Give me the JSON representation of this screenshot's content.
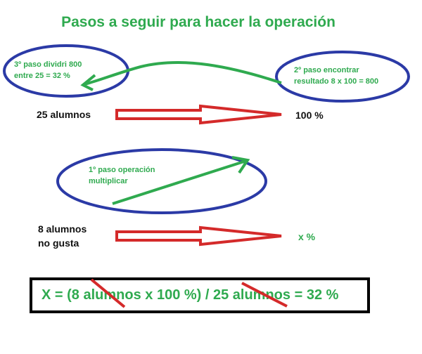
{
  "title": "Pasos a seguir para hacer la operación",
  "step3": {
    "line1": "3º paso dividri 800",
    "line2": "entre 25 = 32 %"
  },
  "step2": {
    "line1": "2º paso encontrar",
    "line2": "resultado 8 x 100 = 800"
  },
  "step1": {
    "line1": "1º paso operación",
    "line2": "multiplicar"
  },
  "row1": {
    "left": "25 alumnos",
    "right": "100 %"
  },
  "row2": {
    "left_line1": "8 alumnos",
    "left_line2": "no gusta",
    "right": "x %"
  },
  "formula": "X = (8 alumnos x 100 %) / 25 alumnos = 32 %",
  "colors": {
    "green": "#2faa4f",
    "blue": "#2b3aa6",
    "red": "#d42a2a",
    "black": "#000000"
  }
}
